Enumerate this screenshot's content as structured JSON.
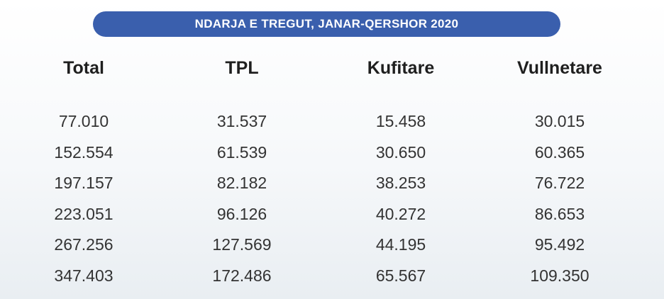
{
  "title": "NDARJA E TREGUT, JANAR-QERSHOR 2020",
  "table": {
    "header": [
      "Total",
      "TPL",
      "Kufitare",
      "Vullnetare"
    ],
    "rows": [
      [
        "77.010",
        "31.537",
        "15.458",
        "30.015"
      ],
      [
        "152.554",
        "61.539",
        "30.650",
        "60.365"
      ],
      [
        "197.157",
        "82.182",
        "38.253",
        "76.722"
      ],
      [
        "223.051",
        "96.126",
        "40.272",
        "86.653"
      ],
      [
        "267.256",
        "127.569",
        "44.195",
        "95.492"
      ],
      [
        "347.403",
        "172.486",
        "65.567",
        "109.350"
      ]
    ]
  }
}
